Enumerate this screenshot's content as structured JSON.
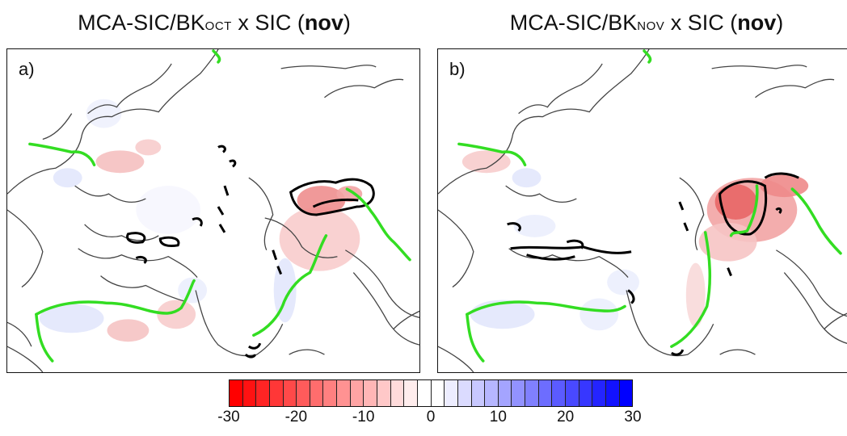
{
  "panels": [
    {
      "label": "a)",
      "title_main": "MCA-SIC/BK",
      "title_sub": "OCT",
      "title_mid": " x SIC (",
      "title_bold": "nov",
      "title_end": ")"
    },
    {
      "label": "b)",
      "title_main": "MCA-SIC/BK",
      "title_sub": "NOV",
      "title_mid": " x SIC (",
      "title_bold": "nov",
      "title_end": ")"
    }
  ],
  "colorbar": {
    "min": -30,
    "max": 30,
    "segments": 30,
    "ticks": [
      "-30",
      "-20",
      "-10",
      "0",
      "10",
      "20",
      "30"
    ],
    "neg_color": "#ff0000",
    "zero_color": "#ffffff",
    "pos_color": "#0000ff"
  },
  "colors": {
    "coastline": "#444444",
    "ice_edge": "#33dd22",
    "significance": "#000000"
  }
}
